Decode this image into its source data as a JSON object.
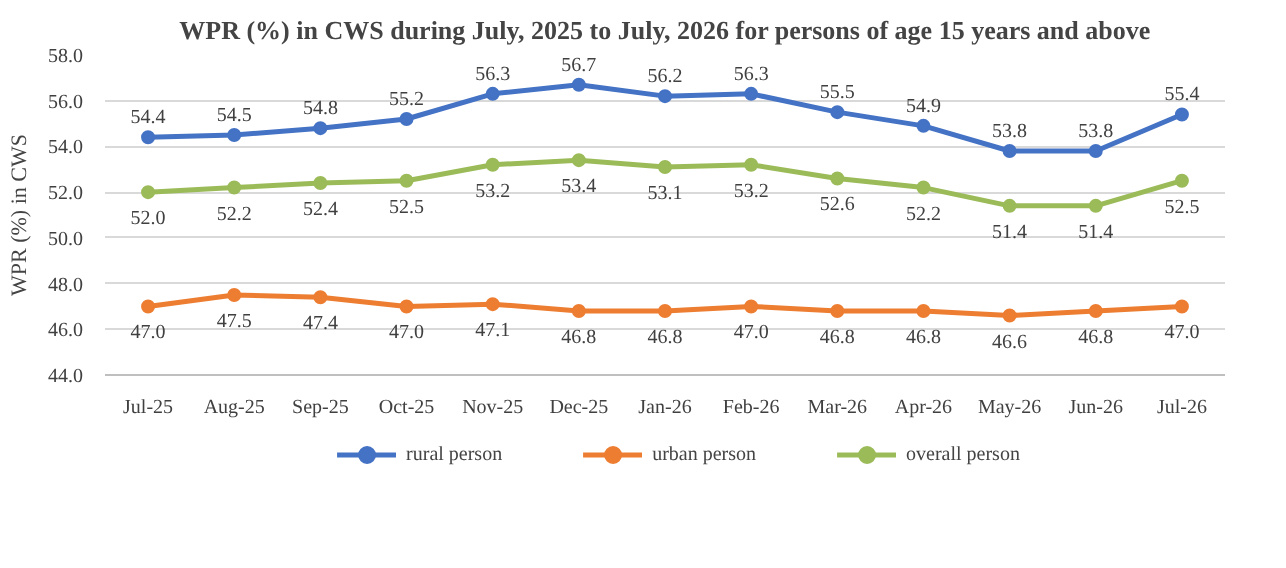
{
  "chart_data": {
    "type": "line",
    "title": "WPR (%) in CWS during July, 2025 to July, 2026 for persons of age 15 years and above",
    "ylabel": "WPR (%) in CWS",
    "categories": [
      "Jul-25",
      "Aug-25",
      "Sep-25",
      "Oct-25",
      "Nov-25",
      "Dec-25",
      "Jan-26",
      "Feb-26",
      "Mar-26",
      "Apr-26",
      "May-26",
      "Jun-26",
      "Jul-26"
    ],
    "series": [
      {
        "name": "rural person",
        "color": "#4472c4",
        "values": [
          54.4,
          54.5,
          54.8,
          55.2,
          56.3,
          56.7,
          56.2,
          56.3,
          55.5,
          54.9,
          53.8,
          53.8,
          55.4
        ],
        "value_labels": [
          "54.4",
          "54.5",
          "54.8",
          "55.2",
          "56.3",
          "56.7",
          "56.2",
          "56.3",
          "55.5",
          "54.9",
          "53.8",
          "53.8",
          "55.4"
        ]
      },
      {
        "name": "urban person",
        "color": "#ed7d31",
        "values": [
          47.0,
          47.5,
          47.4,
          47.0,
          47.1,
          46.8,
          46.8,
          47.0,
          46.8,
          46.8,
          46.6,
          46.8,
          47.0
        ],
        "value_labels": [
          "47.0",
          "47.5",
          "47.4",
          "47.0",
          "47.1",
          "46.8",
          "46.8",
          "47.0",
          "46.8",
          "46.8",
          "46.6",
          "46.8",
          "47.0"
        ]
      },
      {
        "name": "overall person",
        "color": "#9bbb59",
        "values": [
          52.0,
          52.2,
          52.4,
          52.5,
          53.2,
          53.4,
          53.1,
          53.2,
          52.6,
          52.2,
          51.4,
          51.4,
          52.5
        ],
        "value_labels": [
          "52.0",
          "52.2",
          "52.4",
          "52.5",
          "53.2",
          "53.4",
          "53.1",
          "53.2",
          "52.6",
          "52.2",
          "51.4",
          "51.4",
          "52.5"
        ]
      }
    ],
    "ylim": [
      44,
      58
    ],
    "yticks": [
      {
        "value": 44,
        "label": "44.0"
      },
      {
        "value": 46,
        "label": "46.0"
      },
      {
        "value": 48,
        "label": "48.0"
      },
      {
        "value": 50,
        "label": "50.0"
      },
      {
        "value": 52,
        "label": "52.0"
      },
      {
        "value": 54,
        "label": "54.0"
      },
      {
        "value": 56,
        "label": "56.0"
      },
      {
        "value": 58,
        "label": "58.0"
      }
    ],
    "grid": "y",
    "legend": "bottom",
    "marker": "circle",
    "line_style": "solid"
  }
}
